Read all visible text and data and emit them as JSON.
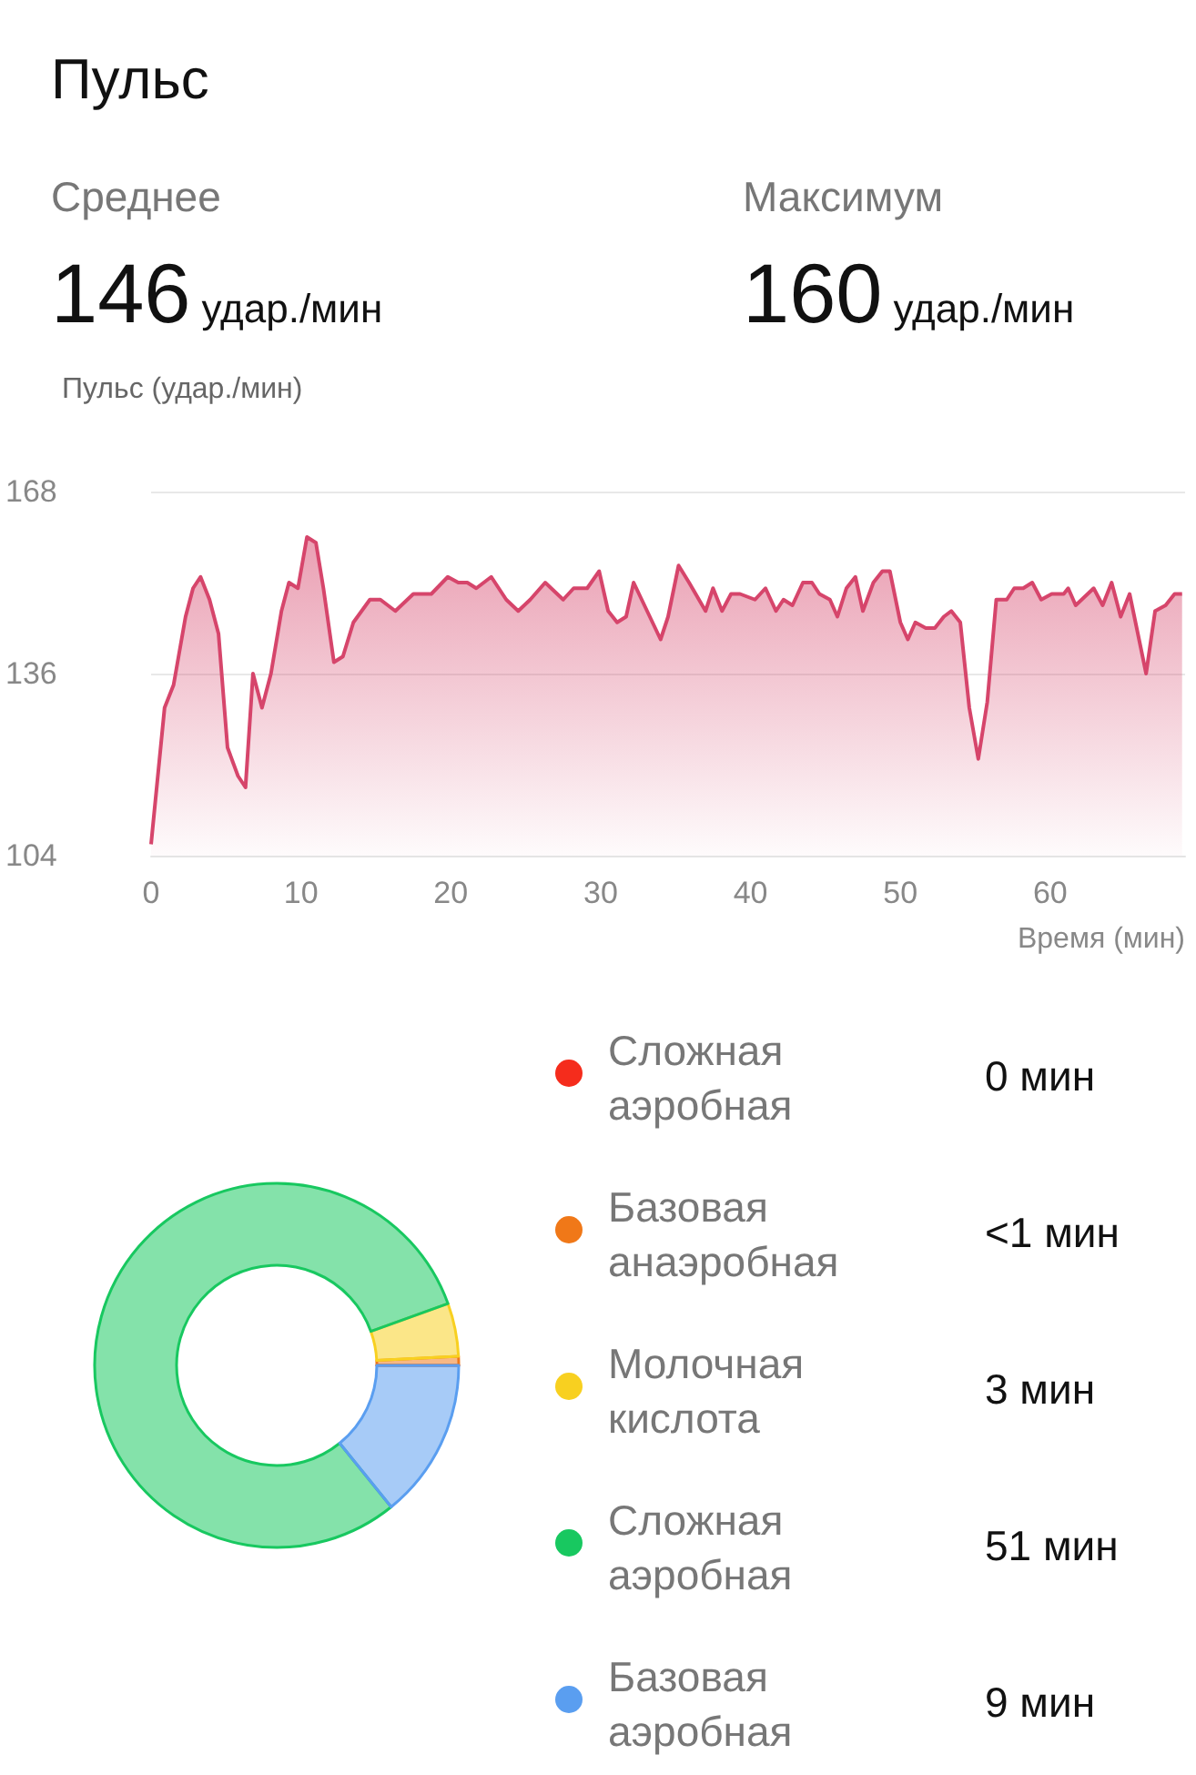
{
  "chart_data": [
    {
      "type": "other",
      "title": "Пульс",
      "annotations": [
        "Среднее",
        "146",
        "удар./мин",
        "Максимум",
        "160",
        "удар./мин"
      ]
    },
    {
      "type": "area",
      "ylabel": "Пульс (удар./мин)",
      "xlabel": "Время (мин)",
      "color": "#d6456b",
      "grid": "y",
      "legend": false,
      "marker": "none",
      "xlim": [
        0,
        69
      ],
      "xticks": [
        0,
        10,
        20,
        30,
        40,
        50,
        60
      ],
      "ylim": [
        104,
        168
      ],
      "yticks": [
        104,
        136,
        168
      ],
      "x": [
        0,
        0.9,
        1.5,
        2.3,
        2.8,
        3.3,
        3.9,
        4.5,
        5.1,
        5.8,
        6.3,
        6.8,
        7.4,
        8.0,
        8.7,
        9.2,
        9.8,
        10.4,
        11.0,
        11.5,
        12.2,
        12.8,
        13.5,
        14.6,
        15.3,
        16.3,
        17.5,
        18.7,
        19.8,
        20.5,
        21.1,
        21.7,
        22.7,
        23.7,
        24.5,
        25.3,
        26.3,
        27.5,
        28.2,
        29.1,
        29.9,
        30.5,
        31.1,
        31.7,
        32.2,
        33.1,
        34.0,
        34.5,
        35.2,
        35.9,
        37.0,
        37.5,
        38.1,
        38.7,
        39.3,
        40.3,
        41.0,
        41.7,
        42.2,
        42.8,
        43.5,
        44.1,
        44.6,
        45.3,
        45.8,
        46.4,
        47.0,
        47.5,
        48.2,
        48.8,
        49.3,
        50.0,
        50.5,
        51.0,
        51.7,
        52.3,
        52.9,
        53.4,
        54.0,
        54.6,
        55.2,
        55.8,
        56.4,
        57.1,
        57.6,
        58.2,
        58.8,
        59.4,
        60.1,
        60.9,
        61.2,
        61.7,
        62.9,
        63.5,
        64.1,
        64.7,
        65.3,
        66.4,
        67.0,
        67.7,
        68.3,
        68.8
      ],
      "values": [
        106,
        130,
        134,
        146,
        151,
        153,
        149,
        143,
        123,
        118,
        116,
        136,
        130,
        136,
        147,
        152,
        151,
        160,
        159,
        151,
        138,
        139,
        145,
        149,
        149,
        147,
        150,
        150,
        153,
        152,
        152,
        151,
        153,
        149,
        147,
        149,
        152,
        149,
        151,
        151,
        154,
        147,
        145,
        146,
        152,
        147,
        142,
        146,
        155,
        152,
        147,
        151,
        147,
        150,
        150,
        149,
        151,
        147,
        149,
        148,
        152,
        152,
        150,
        149,
        146,
        151,
        153,
        147,
        152,
        154,
        154,
        145,
        142,
        145,
        144,
        144,
        146,
        147,
        145,
        130,
        121,
        131,
        149,
        149,
        151,
        151,
        152,
        149,
        150,
        150,
        151,
        148,
        151,
        148,
        152,
        146,
        150,
        136,
        147,
        148,
        150,
        150
      ]
    },
    {
      "type": "donut",
      "categories": [
        "Сложная аэробная",
        "Базовая анаэробная",
        "Молочная кислота",
        "Сложная аэробная",
        "Базовая аэробная"
      ],
      "values": [
        0,
        0.5,
        3,
        51,
        9
      ],
      "colors": [
        "#f52c1c",
        "#f07818",
        "#f8d020",
        "#18c860",
        "#5a9ef0"
      ],
      "value_labels": [
        "0 мин",
        "<1 мин",
        "3 мин",
        "51 мин",
        "9 мин"
      ],
      "legend": "right"
    }
  ]
}
